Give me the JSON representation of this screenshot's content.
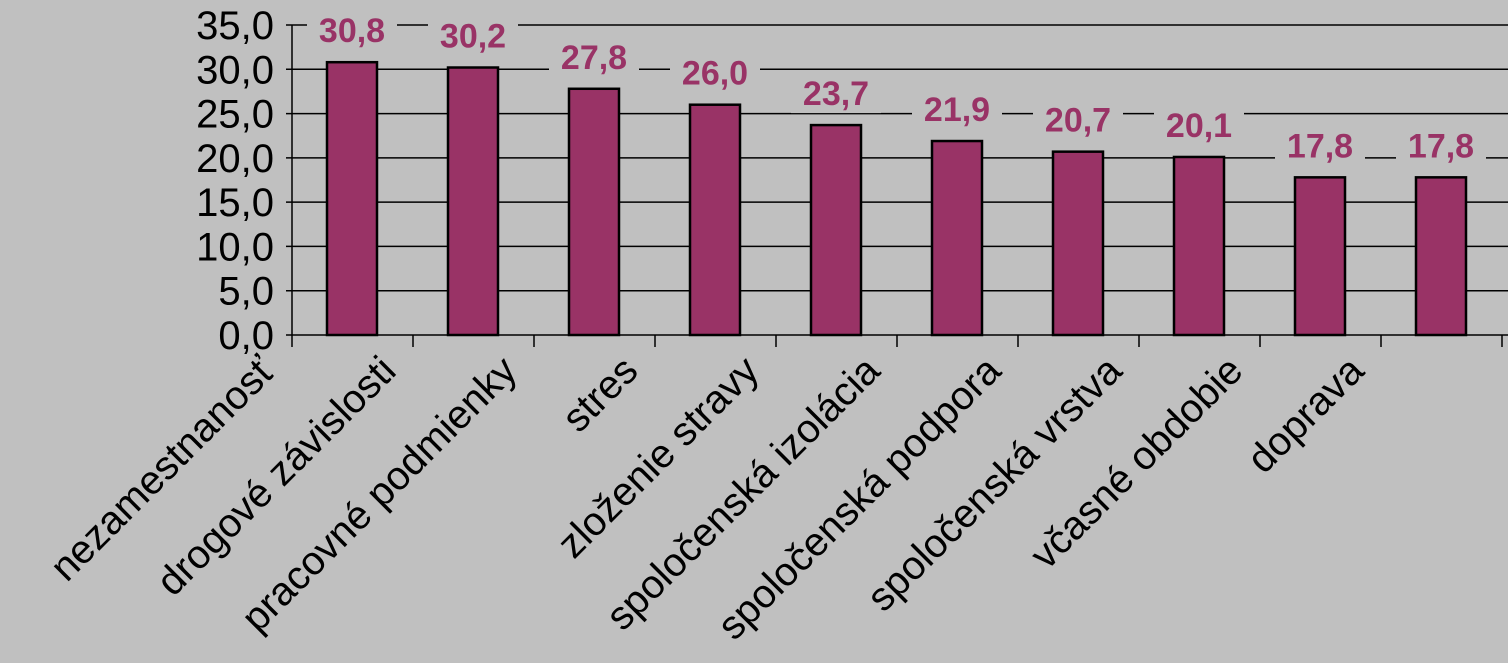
{
  "chart_data": {
    "type": "bar",
    "title": "",
    "xlabel": "",
    "ylabel": "",
    "categories": [
      "nezamestnanosť",
      "drogové závislosti",
      "pracovné podmienky",
      "stres",
      "zloženie stravy",
      "spoločenská izolácia",
      "spoločenská podpora",
      "spoločenská vrstva",
      "včasné obdobie",
      "doprava"
    ],
    "values": [
      30.8,
      30.2,
      27.8,
      26.0,
      23.7,
      21.9,
      20.7,
      20.1,
      17.8,
      17.8
    ],
    "value_labels": [
      "30,8",
      "30,2",
      "27,8",
      "26,0",
      "23,7",
      "21,9",
      "20,7",
      "20,1",
      "17,8",
      "17,8"
    ],
    "yticks": [
      "0,0",
      "5,0",
      "10,0",
      "15,0",
      "20,0",
      "25,0",
      "30,0",
      "35,0"
    ],
    "ylim": [
      0,
      35
    ],
    "grid": true,
    "legend": "none",
    "colors": {
      "bar": "#993366",
      "bar_border": "#000000",
      "data_label": "#993366",
      "background": "#c0c0c0",
      "gridline": "#000000"
    }
  }
}
